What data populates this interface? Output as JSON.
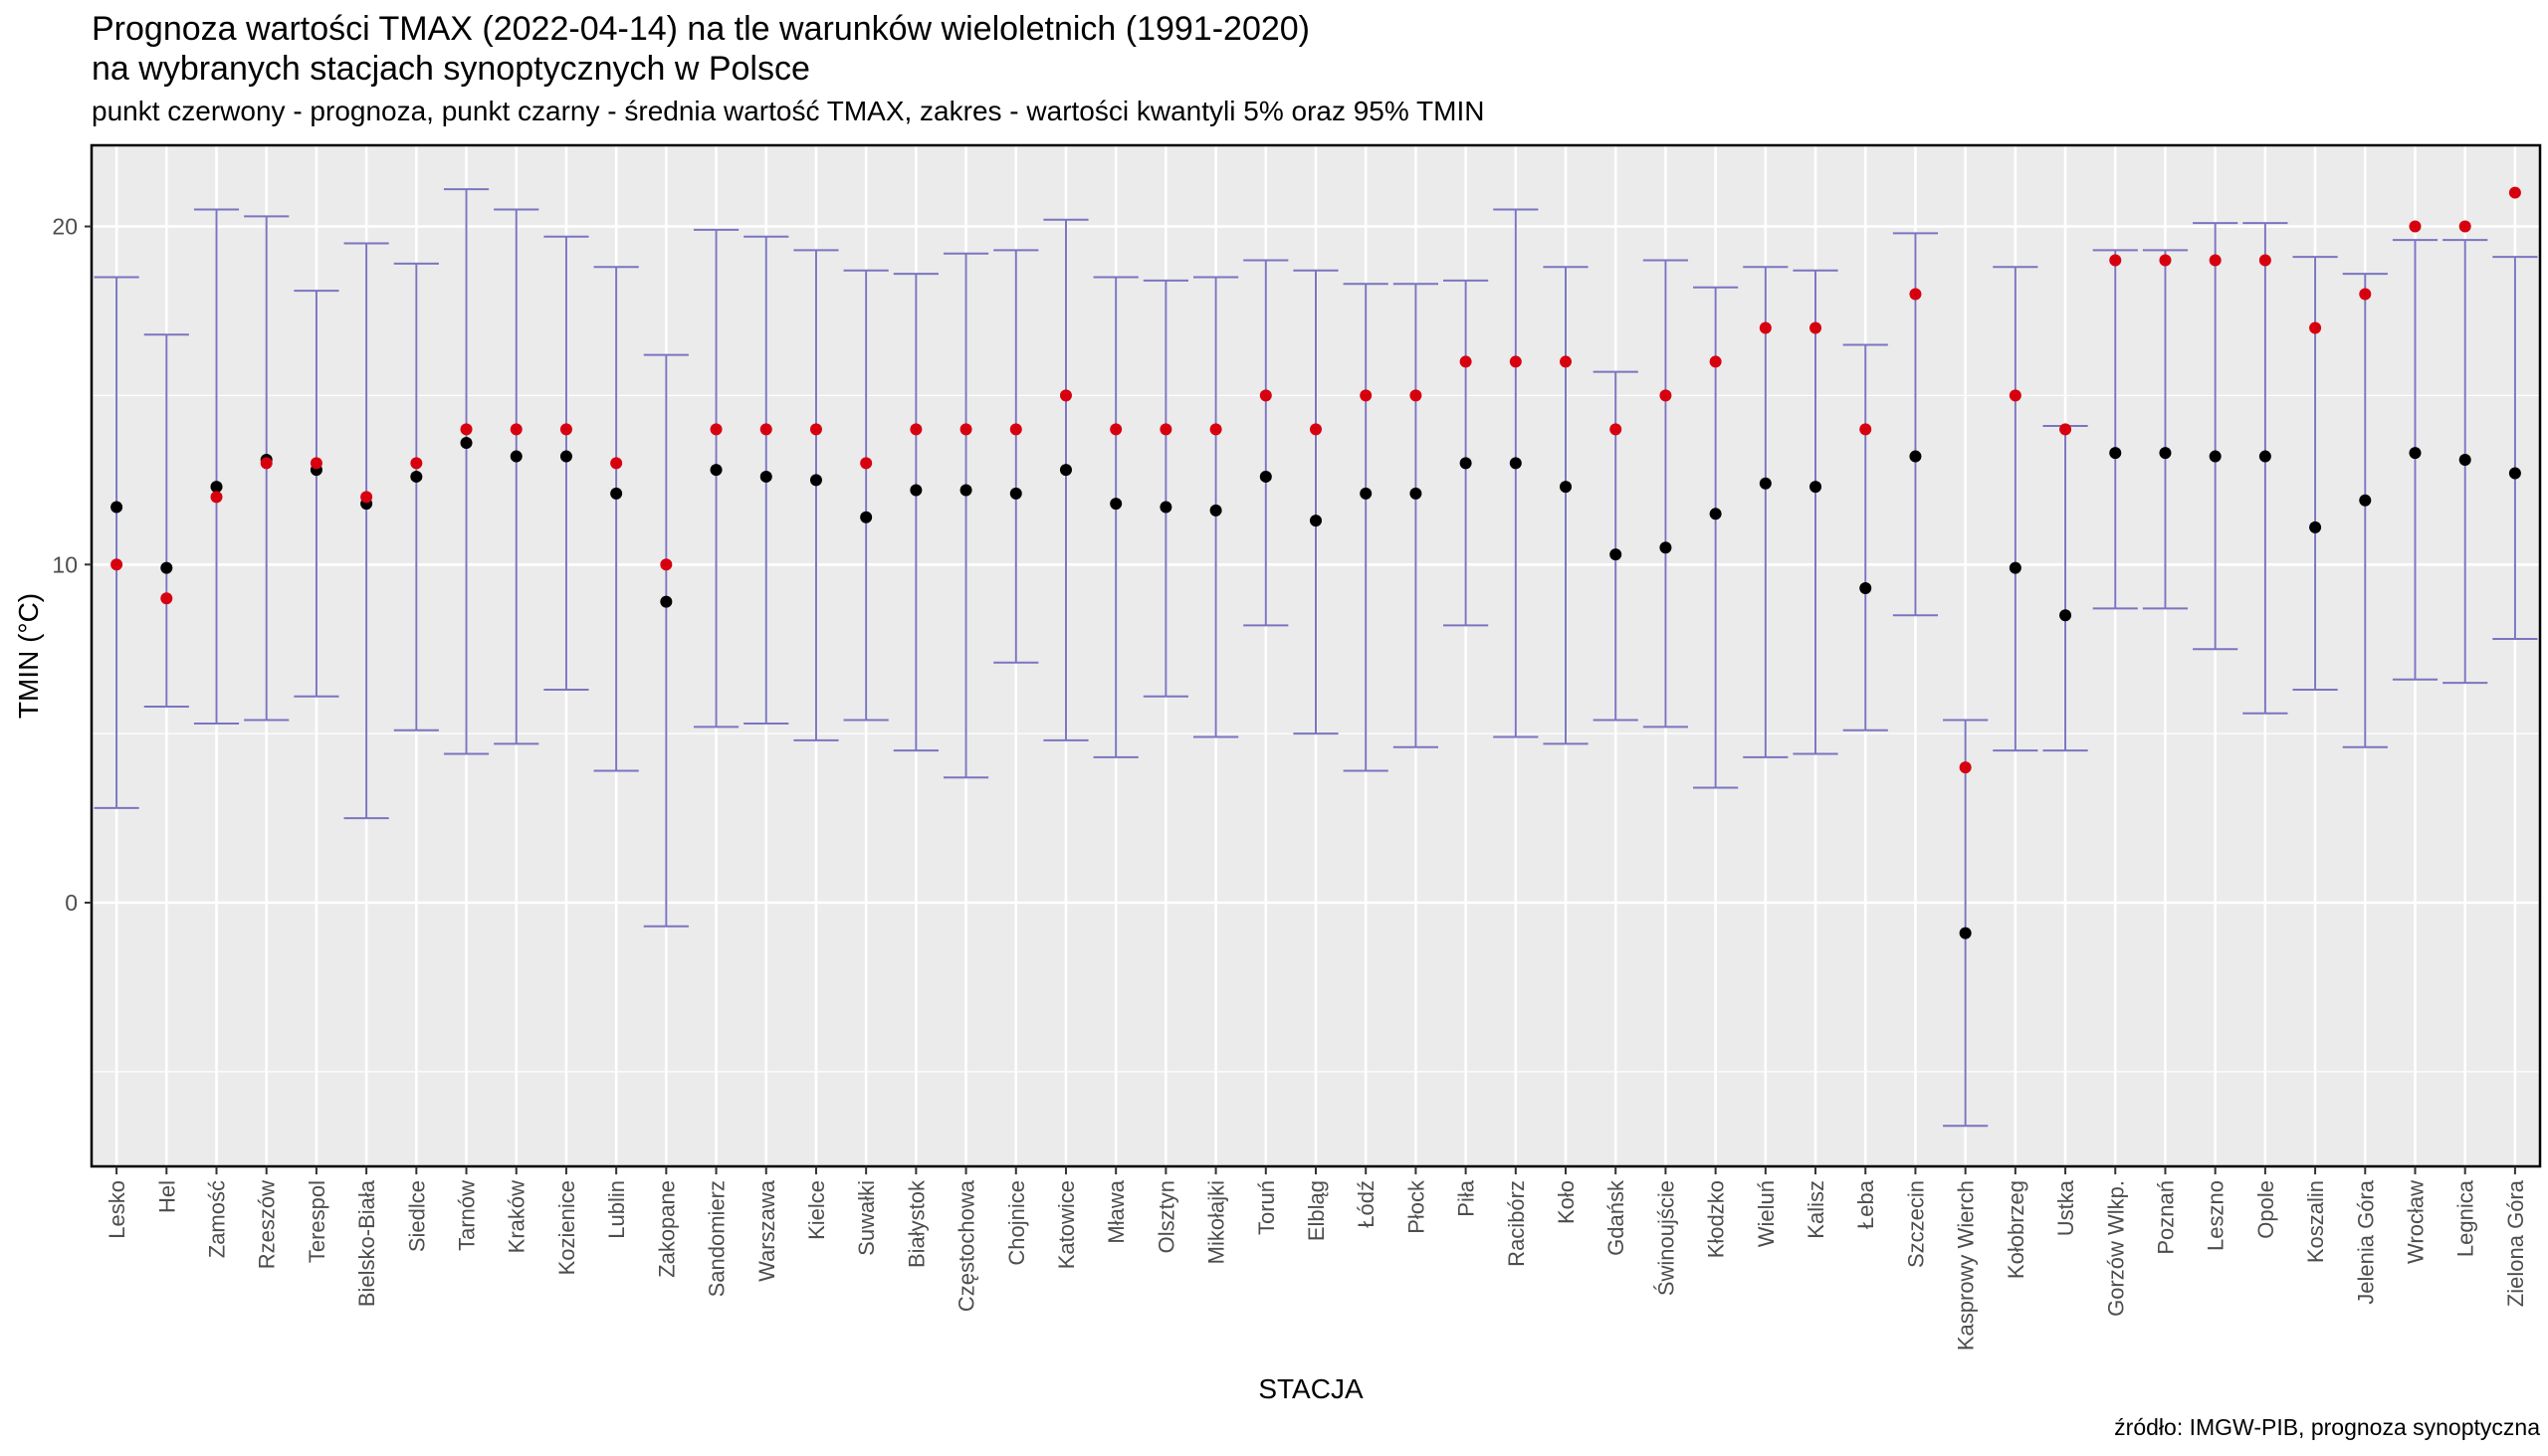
{
  "title_line1": "Prognoza wartości TMAX (2022-04-14) na tle warunków wieloletnich (1991-2020)",
  "title_line2": "na wybranych stacjach synoptycznych w Polsce",
  "subtitle": "punkt czerwony - prognoza, punkt czarny - średnia wartość TMAX, zakres - wartości kwantyli 5% oraz 95% TMIN",
  "source": "źródło: IMGW-PIB, prognoza synoptyczna",
  "colors": {
    "panel": "#EBEBEB",
    "grid": "#FFFFFF",
    "range": "#7B75C0",
    "forecast": "#D7000F",
    "mean": "#000000"
  },
  "chart_data": {
    "type": "scatter",
    "xlabel": "STACJA",
    "ylabel": "TMIN (°C)",
    "ylim": [
      -7.8,
      22.4
    ],
    "yticks": [
      0,
      10,
      20
    ],
    "grid": true,
    "categories": [
      "Lesko",
      "Hel",
      "Zamość",
      "Rzeszów",
      "Terespol",
      "Bielsko-Biała",
      "Siedlce",
      "Tarnów",
      "Kraków",
      "Kozienice",
      "Lublin",
      "Zakopane",
      "Sandomierz",
      "Warszawa",
      "Kielce",
      "Suwałki",
      "Białystok",
      "Częstochowa",
      "Chojnice",
      "Katowice",
      "Mława",
      "Olsztyn",
      "Mikołajki",
      "Toruń",
      "Elbląg",
      "Łódź",
      "Płock",
      "Piła",
      "Racibórz",
      "Koło",
      "Gdańsk",
      "Świnoujście",
      "Kłodzko",
      "Wieluń",
      "Kalisz",
      "Łeba",
      "Szczecin",
      "Kasprowy Wierch",
      "Kołobrzeg",
      "Ustka",
      "Gorzów Wlkp.",
      "Poznań",
      "Leszno",
      "Opole",
      "Koszalin",
      "Jelenia Góra",
      "Wrocław",
      "Legnica",
      "Zielona Góra"
    ],
    "series": [
      {
        "name": "prognoza",
        "values": [
          10,
          9,
          12,
          13,
          13,
          12,
          13,
          14,
          14,
          14,
          13,
          10,
          14,
          14,
          14,
          13,
          14,
          14,
          14,
          15,
          14,
          14,
          14,
          15,
          14,
          15,
          15,
          16,
          16,
          16,
          14,
          15,
          16,
          17,
          17,
          14,
          18,
          4,
          15,
          14,
          19,
          19,
          19,
          19,
          17,
          18,
          20,
          20,
          21
        ]
      },
      {
        "name": "średnia wartość TMAX",
        "values": [
          11.7,
          9.9,
          12.3,
          13.1,
          12.8,
          11.8,
          12.6,
          13.6,
          13.2,
          13.2,
          12.1,
          8.9,
          12.8,
          12.6,
          12.5,
          11.4,
          12.2,
          12.2,
          12.1,
          12.8,
          11.8,
          11.7,
          11.6,
          12.6,
          11.3,
          12.1,
          12.1,
          13.0,
          13.0,
          12.3,
          10.3,
          10.5,
          11.5,
          12.4,
          12.3,
          9.3,
          13.2,
          -0.9,
          9.9,
          8.5,
          13.3,
          13.3,
          13.2,
          13.2,
          11.1,
          11.9,
          13.3,
          13.1,
          12.7
        ]
      },
      {
        "name": "kwantyl 5%",
        "values": [
          2.8,
          5.8,
          5.3,
          5.4,
          6.1,
          2.5,
          5.1,
          4.4,
          4.7,
          6.3,
          3.9,
          -0.7,
          5.2,
          5.3,
          4.8,
          5.4,
          4.5,
          3.7,
          7.1,
          4.8,
          4.3,
          6.1,
          4.9,
          8.2,
          5.0,
          3.9,
          4.6,
          8.2,
          4.9,
          4.7,
          5.4,
          5.2,
          3.4,
          4.3,
          4.4,
          5.1,
          8.5,
          -6.6,
          4.5,
          4.5,
          8.7,
          8.7,
          7.5,
          5.6,
          6.3,
          4.6,
          6.6,
          6.5,
          7.8
        ]
      },
      {
        "name": "kwantyl 95%",
        "values": [
          18.5,
          16.8,
          20.5,
          20.3,
          18.1,
          19.5,
          18.9,
          21.1,
          20.5,
          19.7,
          18.8,
          16.2,
          19.9,
          19.7,
          19.3,
          18.7,
          18.6,
          19.2,
          19.3,
          20.2,
          18.5,
          18.4,
          18.5,
          19.0,
          18.7,
          18.3,
          18.3,
          18.4,
          20.5,
          18.8,
          15.7,
          19.0,
          18.2,
          18.8,
          18.7,
          16.5,
          19.8,
          5.4,
          18.8,
          14.1,
          19.3,
          19.3,
          20.1,
          20.1,
          19.1,
          18.6,
          19.6,
          19.6,
          19.1
        ]
      }
    ]
  }
}
